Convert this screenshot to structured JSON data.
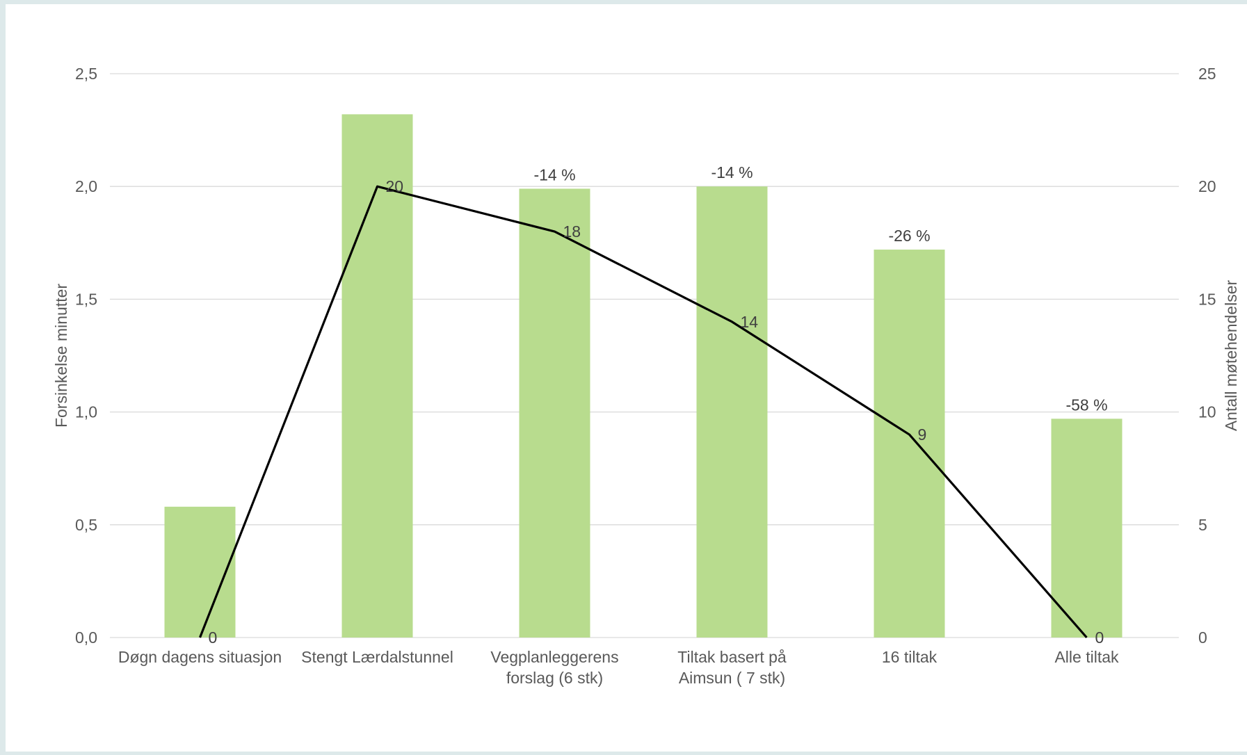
{
  "chart_data": {
    "type": "bar",
    "categories": [
      [
        "Døgn dagens situasjon"
      ],
      [
        "Stengt Lærdalstunnel"
      ],
      [
        "Vegplanleggerens",
        "forslag (6 stk)"
      ],
      [
        "Tiltak basert på",
        "Aimsun ( 7 stk)"
      ],
      [
        "16 tiltak"
      ],
      [
        "Alle tiltak"
      ]
    ],
    "series": [
      {
        "type": "bar",
        "axis": "left",
        "values": [
          0.58,
          2.32,
          1.99,
          2.0,
          1.72,
          0.97
        ],
        "labels": [
          "",
          "",
          "-14 %",
          "-14 %",
          "-26 %",
          "-58 %"
        ],
        "color": "#b8dc8e"
      },
      {
        "type": "line",
        "axis": "right",
        "values": [
          0,
          20,
          18,
          14,
          9,
          0
        ],
        "labels": [
          "0",
          "20",
          "18",
          "14",
          "9",
          "0"
        ],
        "color": "#000000"
      }
    ],
    "y_left": {
      "label": "Forsinkelse minutter",
      "ylim": [
        0,
        2.5
      ],
      "ticks": [
        "0,0",
        "0,5",
        "1,0",
        "1,5",
        "2,0",
        "2,5"
      ]
    },
    "y_right": {
      "label": "Antall møtehendelser",
      "ylim": [
        0,
        25
      ],
      "ticks": [
        "0",
        "5",
        "10",
        "15",
        "20",
        "25"
      ]
    },
    "grid": true,
    "gridline_color": "#d9d9d9",
    "text_color": "#595959"
  }
}
